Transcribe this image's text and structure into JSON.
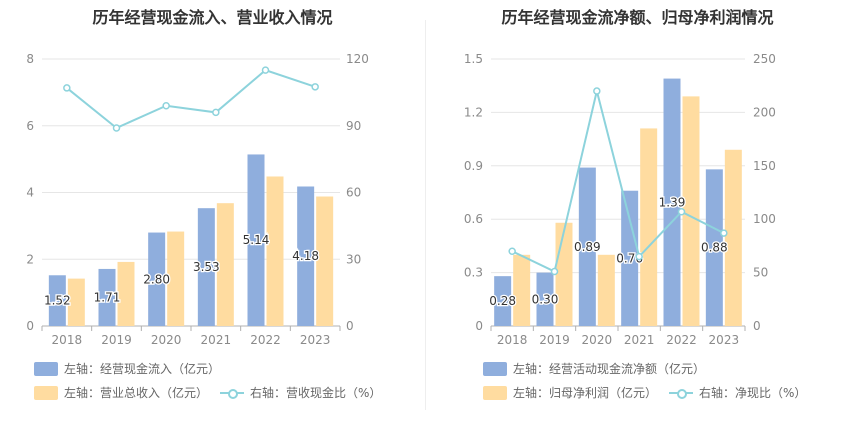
{
  "colors": {
    "bar_left": "#8faedd",
    "bar_right": "#ffdca0",
    "line": "#8dd3dc",
    "grid": "#e6e6e6",
    "axis": "#b0b0b0"
  },
  "chart_data": [
    {
      "type": "bar",
      "title": "历年经营现金流入、营业收入情况",
      "categories": [
        "2018",
        "2019",
        "2020",
        "2021",
        "2022",
        "2023"
      ],
      "y_left": {
        "min": 0,
        "max": 8,
        "ticks": [
          0,
          2,
          4,
          6,
          8
        ]
      },
      "y_right": {
        "min": 0,
        "max": 120,
        "ticks": [
          0,
          30,
          60,
          90,
          120
        ]
      },
      "series": [
        {
          "name": "左轴：经营现金流入（亿元）",
          "kind": "bar",
          "axis": "left",
          "values": [
            1.52,
            1.71,
            2.8,
            3.53,
            5.14,
            4.18
          ],
          "labels": [
            "1.52",
            "1.71",
            "2.80",
            "3.53",
            "5.14",
            "4.18"
          ]
        },
        {
          "name": "左轴：营业总收入（亿元）",
          "kind": "bar",
          "axis": "left",
          "values": [
            1.42,
            1.92,
            2.83,
            3.68,
            4.48,
            3.88
          ]
        },
        {
          "name": "右轴：营收现金比（%）",
          "kind": "line",
          "axis": "right",
          "values": [
            107,
            89,
            99,
            96,
            115,
            107.5
          ]
        }
      ],
      "legend_placement": "bottom"
    },
    {
      "type": "bar",
      "title": "历年经营现金流净额、归母净利润情况",
      "categories": [
        "2018",
        "2019",
        "2020",
        "2021",
        "2022",
        "2023"
      ],
      "y_left": {
        "min": 0,
        "max": 1.5,
        "ticks": [
          "0",
          "0.3",
          "0.6",
          "0.9",
          "1.2",
          "1.5"
        ]
      },
      "y_right": {
        "min": 0,
        "max": 250,
        "ticks": [
          0,
          50,
          100,
          150,
          200,
          250
        ]
      },
      "series": [
        {
          "name": "左轴：经营活动现金流净额（亿元）",
          "kind": "bar",
          "axis": "left",
          "values": [
            0.28,
            0.3,
            0.89,
            0.76,
            1.39,
            0.88
          ],
          "labels": [
            "0.28",
            "0.30",
            "0.89",
            "0.76",
            "1.39",
            "0.88"
          ]
        },
        {
          "name": "左轴：归母净利润（亿元）",
          "kind": "bar",
          "axis": "left",
          "values": [
            0.4,
            0.58,
            0.4,
            1.11,
            1.29,
            0.99
          ]
        },
        {
          "name": "右轴：净现比（%）",
          "kind": "line",
          "axis": "right",
          "values": [
            70,
            51,
            220,
            65,
            107,
            87
          ]
        }
      ],
      "legend_placement": "bottom"
    }
  ]
}
